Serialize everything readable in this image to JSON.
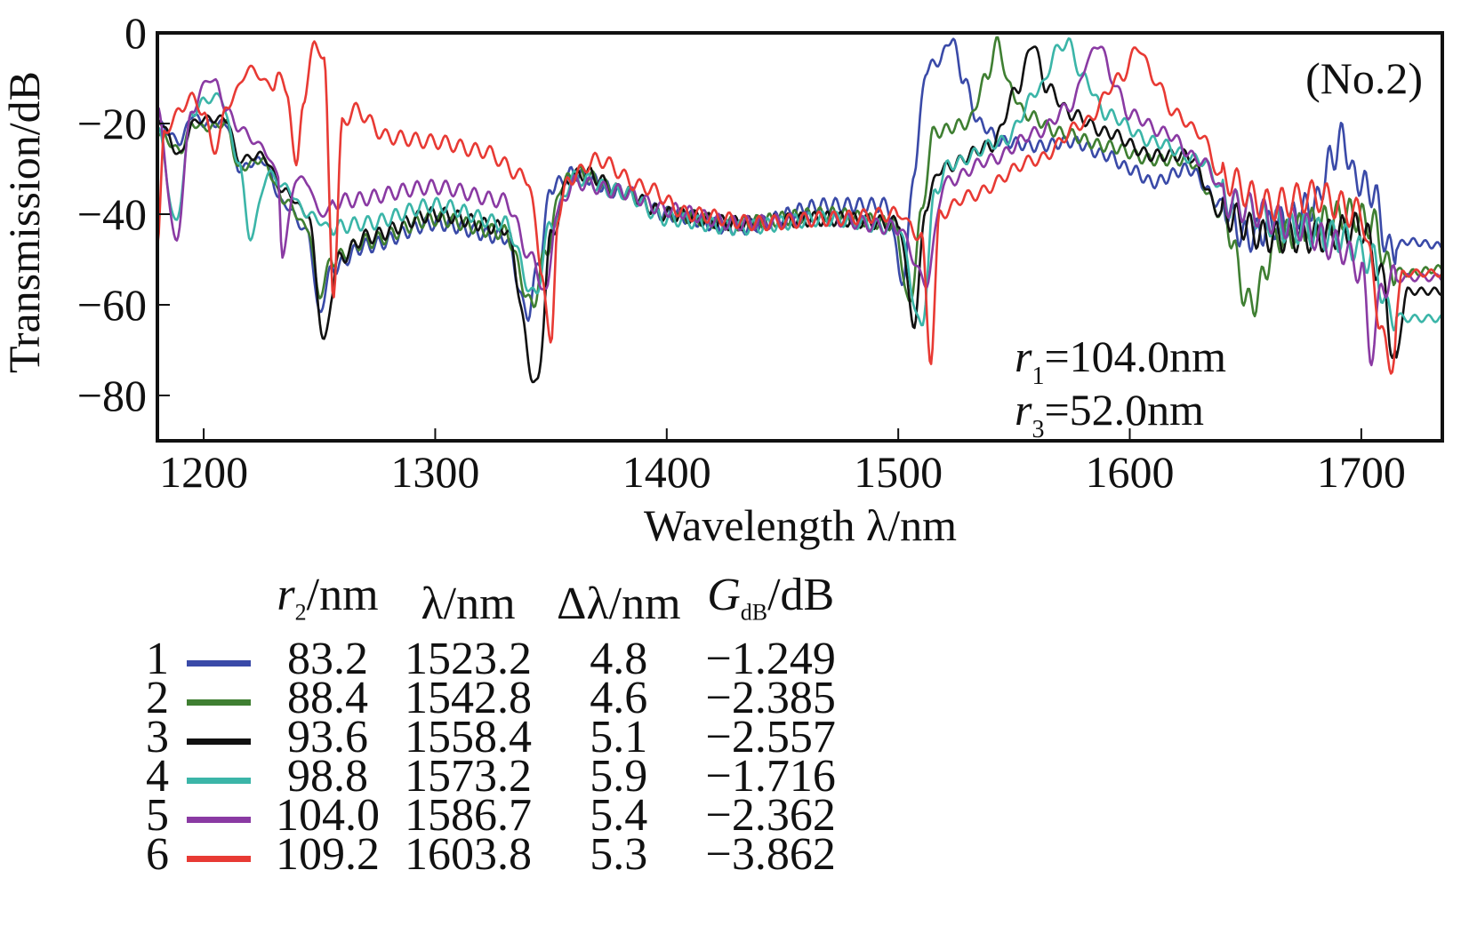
{
  "chart_data": {
    "type": "line",
    "title": "",
    "panel_label": "(No.2)",
    "xlabel": "Wavelength λ/nm",
    "ylabel": "Transmission/dB",
    "xlim": [
      1180,
      1735
    ],
    "ylim": [
      -90,
      0
    ],
    "x_ticks": [
      1200,
      1300,
      1400,
      1500,
      1600,
      1700
    ],
    "y_ticks": [
      0,
      -20,
      -40,
      -60,
      -80
    ],
    "y_tick_labels": [
      "0",
      "−20",
      "−40",
      "−60",
      "−80"
    ],
    "grid": false,
    "annotations": [
      {
        "var": "r",
        "sub": "1",
        "text": "=104.0nm"
      },
      {
        "var": "r",
        "sub": "3",
        "text": "=52.0nm"
      }
    ],
    "legend": {
      "placement": "below",
      "headers": [
        "r2/nm",
        "λ/nm",
        "Δλ/nm",
        "GdB/dB"
      ],
      "header_parts": [
        {
          "main": "r",
          "sub": "2",
          "rest": "/nm",
          "italic": true
        },
        {
          "main": "λ/nm",
          "sub": "",
          "rest": "",
          "italic": false
        },
        {
          "main": "Δλ/nm",
          "sub": "",
          "rest": "",
          "italic": false
        },
        {
          "main": "G",
          "sub": "dB",
          "rest": "/dB",
          "italic": true
        }
      ]
    },
    "series": [
      {
        "id": "1",
        "name": "1",
        "color": "#3a4aa8",
        "r2_nm": "83.2",
        "lambda_nm": "1523.2",
        "delta_lambda_nm": "4.8",
        "gain_db": "−1.249",
        "points": [
          [
            1180,
            -20
          ],
          [
            1190,
            -24
          ],
          [
            1195,
            -18
          ],
          [
            1200,
            -20
          ],
          [
            1210,
            -20
          ],
          [
            1215,
            -30
          ],
          [
            1225,
            -28
          ],
          [
            1235,
            -38
          ],
          [
            1245,
            -44
          ],
          [
            1250,
            -62
          ],
          [
            1255,
            -52
          ],
          [
            1270,
            -47
          ],
          [
            1300,
            -42
          ],
          [
            1330,
            -45
          ],
          [
            1340,
            -62
          ],
          [
            1345,
            -50
          ],
          [
            1350,
            -34
          ],
          [
            1360,
            -31
          ],
          [
            1380,
            -35
          ],
          [
            1400,
            -40
          ],
          [
            1430,
            -43
          ],
          [
            1470,
            -38
          ],
          [
            1495,
            -38
          ],
          [
            1502,
            -55
          ],
          [
            1507,
            -30
          ],
          [
            1512,
            -8
          ],
          [
            1518,
            -6
          ],
          [
            1523,
            -1
          ],
          [
            1528,
            -10
          ],
          [
            1535,
            -20
          ],
          [
            1545,
            -24
          ],
          [
            1560,
            -25
          ],
          [
            1575,
            -24
          ],
          [
            1590,
            -27
          ],
          [
            1600,
            -30
          ],
          [
            1610,
            -33
          ],
          [
            1625,
            -30
          ],
          [
            1640,
            -38
          ],
          [
            1650,
            -45
          ],
          [
            1665,
            -42
          ],
          [
            1680,
            -38
          ],
          [
            1687,
            -28
          ],
          [
            1692,
            -23
          ],
          [
            1697,
            -32
          ],
          [
            1705,
            -35
          ],
          [
            1712,
            -48
          ],
          [
            1720,
            -46
          ],
          [
            1735,
            -47
          ]
        ]
      },
      {
        "id": "2",
        "name": "2",
        "color": "#3f7f32",
        "r2_nm": "88.4",
        "lambda_nm": "1542.8",
        "delta_lambda_nm": "4.6",
        "gain_db": "−2.385",
        "points": [
          [
            1180,
            -22
          ],
          [
            1190,
            -26
          ],
          [
            1195,
            -20
          ],
          [
            1200,
            -21
          ],
          [
            1210,
            -20
          ],
          [
            1215,
            -30
          ],
          [
            1225,
            -28
          ],
          [
            1235,
            -37
          ],
          [
            1245,
            -43
          ],
          [
            1250,
            -58
          ],
          [
            1255,
            -50
          ],
          [
            1270,
            -46
          ],
          [
            1300,
            -41
          ],
          [
            1330,
            -44
          ],
          [
            1342,
            -60
          ],
          [
            1348,
            -48
          ],
          [
            1355,
            -33
          ],
          [
            1362,
            -31
          ],
          [
            1380,
            -35
          ],
          [
            1400,
            -40
          ],
          [
            1430,
            -42
          ],
          [
            1470,
            -40
          ],
          [
            1498,
            -42
          ],
          [
            1505,
            -60
          ],
          [
            1510,
            -40
          ],
          [
            1515,
            -22
          ],
          [
            1530,
            -20
          ],
          [
            1538,
            -10
          ],
          [
            1543,
            -2
          ],
          [
            1548,
            -12
          ],
          [
            1555,
            -18
          ],
          [
            1570,
            -22
          ],
          [
            1590,
            -25
          ],
          [
            1610,
            -28
          ],
          [
            1625,
            -28
          ],
          [
            1640,
            -40
          ],
          [
            1652,
            -60
          ],
          [
            1665,
            -45
          ],
          [
            1680,
            -42
          ],
          [
            1695,
            -40
          ],
          [
            1705,
            -42
          ],
          [
            1712,
            -52
          ],
          [
            1720,
            -53
          ],
          [
            1735,
            -52
          ]
        ]
      },
      {
        "id": "3",
        "name": "3",
        "color": "#111111",
        "r2_nm": "93.6",
        "lambda_nm": "1558.4",
        "delta_lambda_nm": "5.1",
        "gain_db": "−2.557",
        "points": [
          [
            1180,
            -19
          ],
          [
            1190,
            -27
          ],
          [
            1195,
            -20
          ],
          [
            1200,
            -19
          ],
          [
            1210,
            -19
          ],
          [
            1215,
            -28
          ],
          [
            1225,
            -27
          ],
          [
            1235,
            -35
          ],
          [
            1245,
            -40
          ],
          [
            1252,
            -68
          ],
          [
            1258,
            -50
          ],
          [
            1270,
            -45
          ],
          [
            1300,
            -40
          ],
          [
            1330,
            -43
          ],
          [
            1344,
            -78
          ],
          [
            1350,
            -45
          ],
          [
            1358,
            -32
          ],
          [
            1365,
            -31
          ],
          [
            1380,
            -35
          ],
          [
            1400,
            -40
          ],
          [
            1430,
            -42
          ],
          [
            1470,
            -41
          ],
          [
            1500,
            -42
          ],
          [
            1507,
            -64
          ],
          [
            1512,
            -38
          ],
          [
            1518,
            -30
          ],
          [
            1540,
            -25
          ],
          [
            1552,
            -12
          ],
          [
            1558,
            -2
          ],
          [
            1564,
            -12
          ],
          [
            1575,
            -18
          ],
          [
            1590,
            -22
          ],
          [
            1610,
            -27
          ],
          [
            1625,
            -27
          ],
          [
            1640,
            -40
          ],
          [
            1660,
            -45
          ],
          [
            1680,
            -45
          ],
          [
            1700,
            -43
          ],
          [
            1710,
            -55
          ],
          [
            1714,
            -74
          ],
          [
            1720,
            -57
          ],
          [
            1735,
            -57
          ]
        ]
      },
      {
        "id": "4",
        "name": "4",
        "color": "#3bb5a8",
        "r2_nm": "98.8",
        "lambda_nm": "1573.2",
        "delta_lambda_nm": "5.9",
        "gain_db": "−1.716",
        "points": [
          [
            1180,
            -21
          ],
          [
            1188,
            -42
          ],
          [
            1195,
            -18
          ],
          [
            1200,
            -15
          ],
          [
            1207,
            -14
          ],
          [
            1215,
            -28
          ],
          [
            1220,
            -45
          ],
          [
            1228,
            -31
          ],
          [
            1235,
            -34
          ],
          [
            1245,
            -40
          ],
          [
            1255,
            -43
          ],
          [
            1270,
            -42
          ],
          [
            1300,
            -38
          ],
          [
            1330,
            -42
          ],
          [
            1343,
            -58
          ],
          [
            1350,
            -42
          ],
          [
            1360,
            -32
          ],
          [
            1380,
            -35
          ],
          [
            1400,
            -41
          ],
          [
            1430,
            -43
          ],
          [
            1470,
            -41
          ],
          [
            1500,
            -43
          ],
          [
            1510,
            -65
          ],
          [
            1516,
            -35
          ],
          [
            1522,
            -29
          ],
          [
            1545,
            -24
          ],
          [
            1562,
            -12
          ],
          [
            1568,
            -4
          ],
          [
            1573,
            -2
          ],
          [
            1580,
            -10
          ],
          [
            1590,
            -18
          ],
          [
            1610,
            -24
          ],
          [
            1630,
            -28
          ],
          [
            1645,
            -38
          ],
          [
            1670,
            -43
          ],
          [
            1690,
            -45
          ],
          [
            1705,
            -50
          ],
          [
            1712,
            -62
          ],
          [
            1720,
            -63
          ],
          [
            1735,
            -63
          ]
        ]
      },
      {
        "id": "5",
        "name": "5",
        "color": "#8a3aa3",
        "r2_nm": "104.0",
        "lambda_nm": "1586.7",
        "delta_lambda_nm": "5.4",
        "gain_db": "−2.362",
        "points": [
          [
            1180,
            -17
          ],
          [
            1188,
            -46
          ],
          [
            1195,
            -17
          ],
          [
            1202,
            -10
          ],
          [
            1205,
            -11
          ],
          [
            1210,
            -17
          ],
          [
            1215,
            -21
          ],
          [
            1225,
            -25
          ],
          [
            1232,
            -31
          ],
          [
            1234,
            -49
          ],
          [
            1240,
            -32
          ],
          [
            1245,
            -33
          ],
          [
            1250,
            -40
          ],
          [
            1260,
            -37
          ],
          [
            1300,
            -34
          ],
          [
            1330,
            -37
          ],
          [
            1342,
            -50
          ],
          [
            1348,
            -58
          ],
          [
            1352,
            -40
          ],
          [
            1360,
            -33
          ],
          [
            1380,
            -35
          ],
          [
            1400,
            -39
          ],
          [
            1430,
            -42
          ],
          [
            1470,
            -41
          ],
          [
            1500,
            -43
          ],
          [
            1512,
            -55
          ],
          [
            1520,
            -33
          ],
          [
            1540,
            -28
          ],
          [
            1560,
            -22
          ],
          [
            1575,
            -16
          ],
          [
            1582,
            -6
          ],
          [
            1587,
            -2
          ],
          [
            1592,
            -10
          ],
          [
            1600,
            -18
          ],
          [
            1615,
            -22
          ],
          [
            1630,
            -28
          ],
          [
            1645,
            -38
          ],
          [
            1670,
            -42
          ],
          [
            1690,
            -47
          ],
          [
            1700,
            -52
          ],
          [
            1704,
            -70
          ],
          [
            1710,
            -55
          ],
          [
            1720,
            -54
          ],
          [
            1735,
            -54
          ]
        ]
      },
      {
        "id": "6",
        "name": "6",
        "color": "#e83a34",
        "r2_nm": "109.2",
        "lambda_nm": "1603.8",
        "delta_lambda_nm": "5.3",
        "gain_db": "−3.862",
        "points": [
          [
            1180,
            -47
          ],
          [
            1183,
            -22
          ],
          [
            1190,
            -17
          ],
          [
            1195,
            -14
          ],
          [
            1200,
            -18
          ],
          [
            1205,
            -26
          ],
          [
            1210,
            -16
          ],
          [
            1220,
            -8
          ],
          [
            1230,
            -12
          ],
          [
            1232,
            -9
          ],
          [
            1236,
            -13
          ],
          [
            1240,
            -30
          ],
          [
            1243,
            -15
          ],
          [
            1248,
            -2
          ],
          [
            1252,
            -6
          ],
          [
            1256,
            -57
          ],
          [
            1260,
            -20
          ],
          [
            1265,
            -17
          ],
          [
            1280,
            -23
          ],
          [
            1300,
            -24
          ],
          [
            1320,
            -26
          ],
          [
            1340,
            -32
          ],
          [
            1346,
            -52
          ],
          [
            1350,
            -70
          ],
          [
            1353,
            -40
          ],
          [
            1358,
            -32
          ],
          [
            1370,
            -28
          ],
          [
            1390,
            -34
          ],
          [
            1410,
            -40
          ],
          [
            1440,
            -42
          ],
          [
            1470,
            -41
          ],
          [
            1500,
            -40
          ],
          [
            1510,
            -45
          ],
          [
            1514,
            -72
          ],
          [
            1518,
            -40
          ],
          [
            1530,
            -36
          ],
          [
            1560,
            -28
          ],
          [
            1580,
            -20
          ],
          [
            1596,
            -10
          ],
          [
            1604,
            -3
          ],
          [
            1610,
            -10
          ],
          [
            1620,
            -18
          ],
          [
            1630,
            -22
          ],
          [
            1640,
            -32
          ],
          [
            1660,
            -38
          ],
          [
            1680,
            -36
          ],
          [
            1700,
            -40
          ],
          [
            1708,
            -62
          ],
          [
            1712,
            -75
          ],
          [
            1718,
            -53
          ],
          [
            1735,
            -53
          ]
        ]
      }
    ]
  }
}
